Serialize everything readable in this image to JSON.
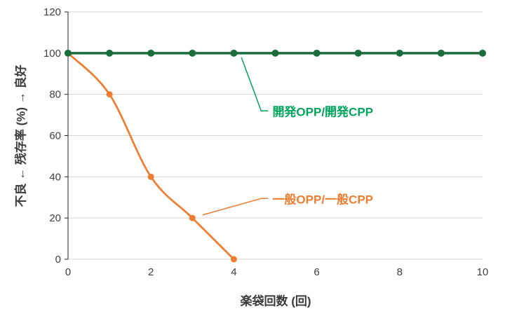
{
  "chart_data": {
    "type": "line",
    "title": "",
    "xlabel": "楽袋回数 (回)",
    "ylabel": "不良 ← 残存率 (%) → 良好",
    "xlim": [
      0,
      10
    ],
    "ylim": [
      0,
      120
    ],
    "xticks": [
      0,
      2,
      4,
      6,
      8,
      10
    ],
    "yticks": [
      0,
      20,
      40,
      60,
      80,
      100,
      120
    ],
    "grid": "horizontal-only",
    "legend": "inline-callouts",
    "gridline_color": "#d6d6d6",
    "axis_color": "#262626",
    "tick_label_color": "#404040",
    "background_color": "#ffffff",
    "series": [
      {
        "name": "一般OPP/一般CPP",
        "x": [
          0,
          1,
          2,
          3,
          4
        ],
        "values": [
          100,
          80,
          40,
          20,
          0
        ],
        "color": "#ED7D31",
        "smooth": true,
        "marker_radius": 4.5,
        "line_width": 2.75
      },
      {
        "name": "開発OPP/開発CPP",
        "x": [
          0,
          1,
          2,
          3,
          4,
          5,
          6,
          7,
          8,
          9,
          10
        ],
        "values": [
          100,
          100,
          100,
          100,
          100,
          100,
          100,
          100,
          100,
          100,
          100
        ],
        "color": "#1B6E3B",
        "smooth": false,
        "marker_radius": 5,
        "line_width": 3.5
      }
    ],
    "annotations": [
      {
        "text": "開発OPP/開発CPP",
        "color": "#00A45A",
        "attach_xy": [
          4.18,
          98
        ],
        "elbow_xy": [
          4.66,
          72
        ],
        "label_xy": [
          4.83,
          72
        ]
      },
      {
        "text": "一般OPP/一般CPP",
        "color": "#ED7D31",
        "attach_xy": [
          3.25,
          21.5
        ],
        "elbow_xy": [
          4.66,
          29.5
        ],
        "label_xy": [
          4.83,
          29.5
        ]
      }
    ]
  }
}
